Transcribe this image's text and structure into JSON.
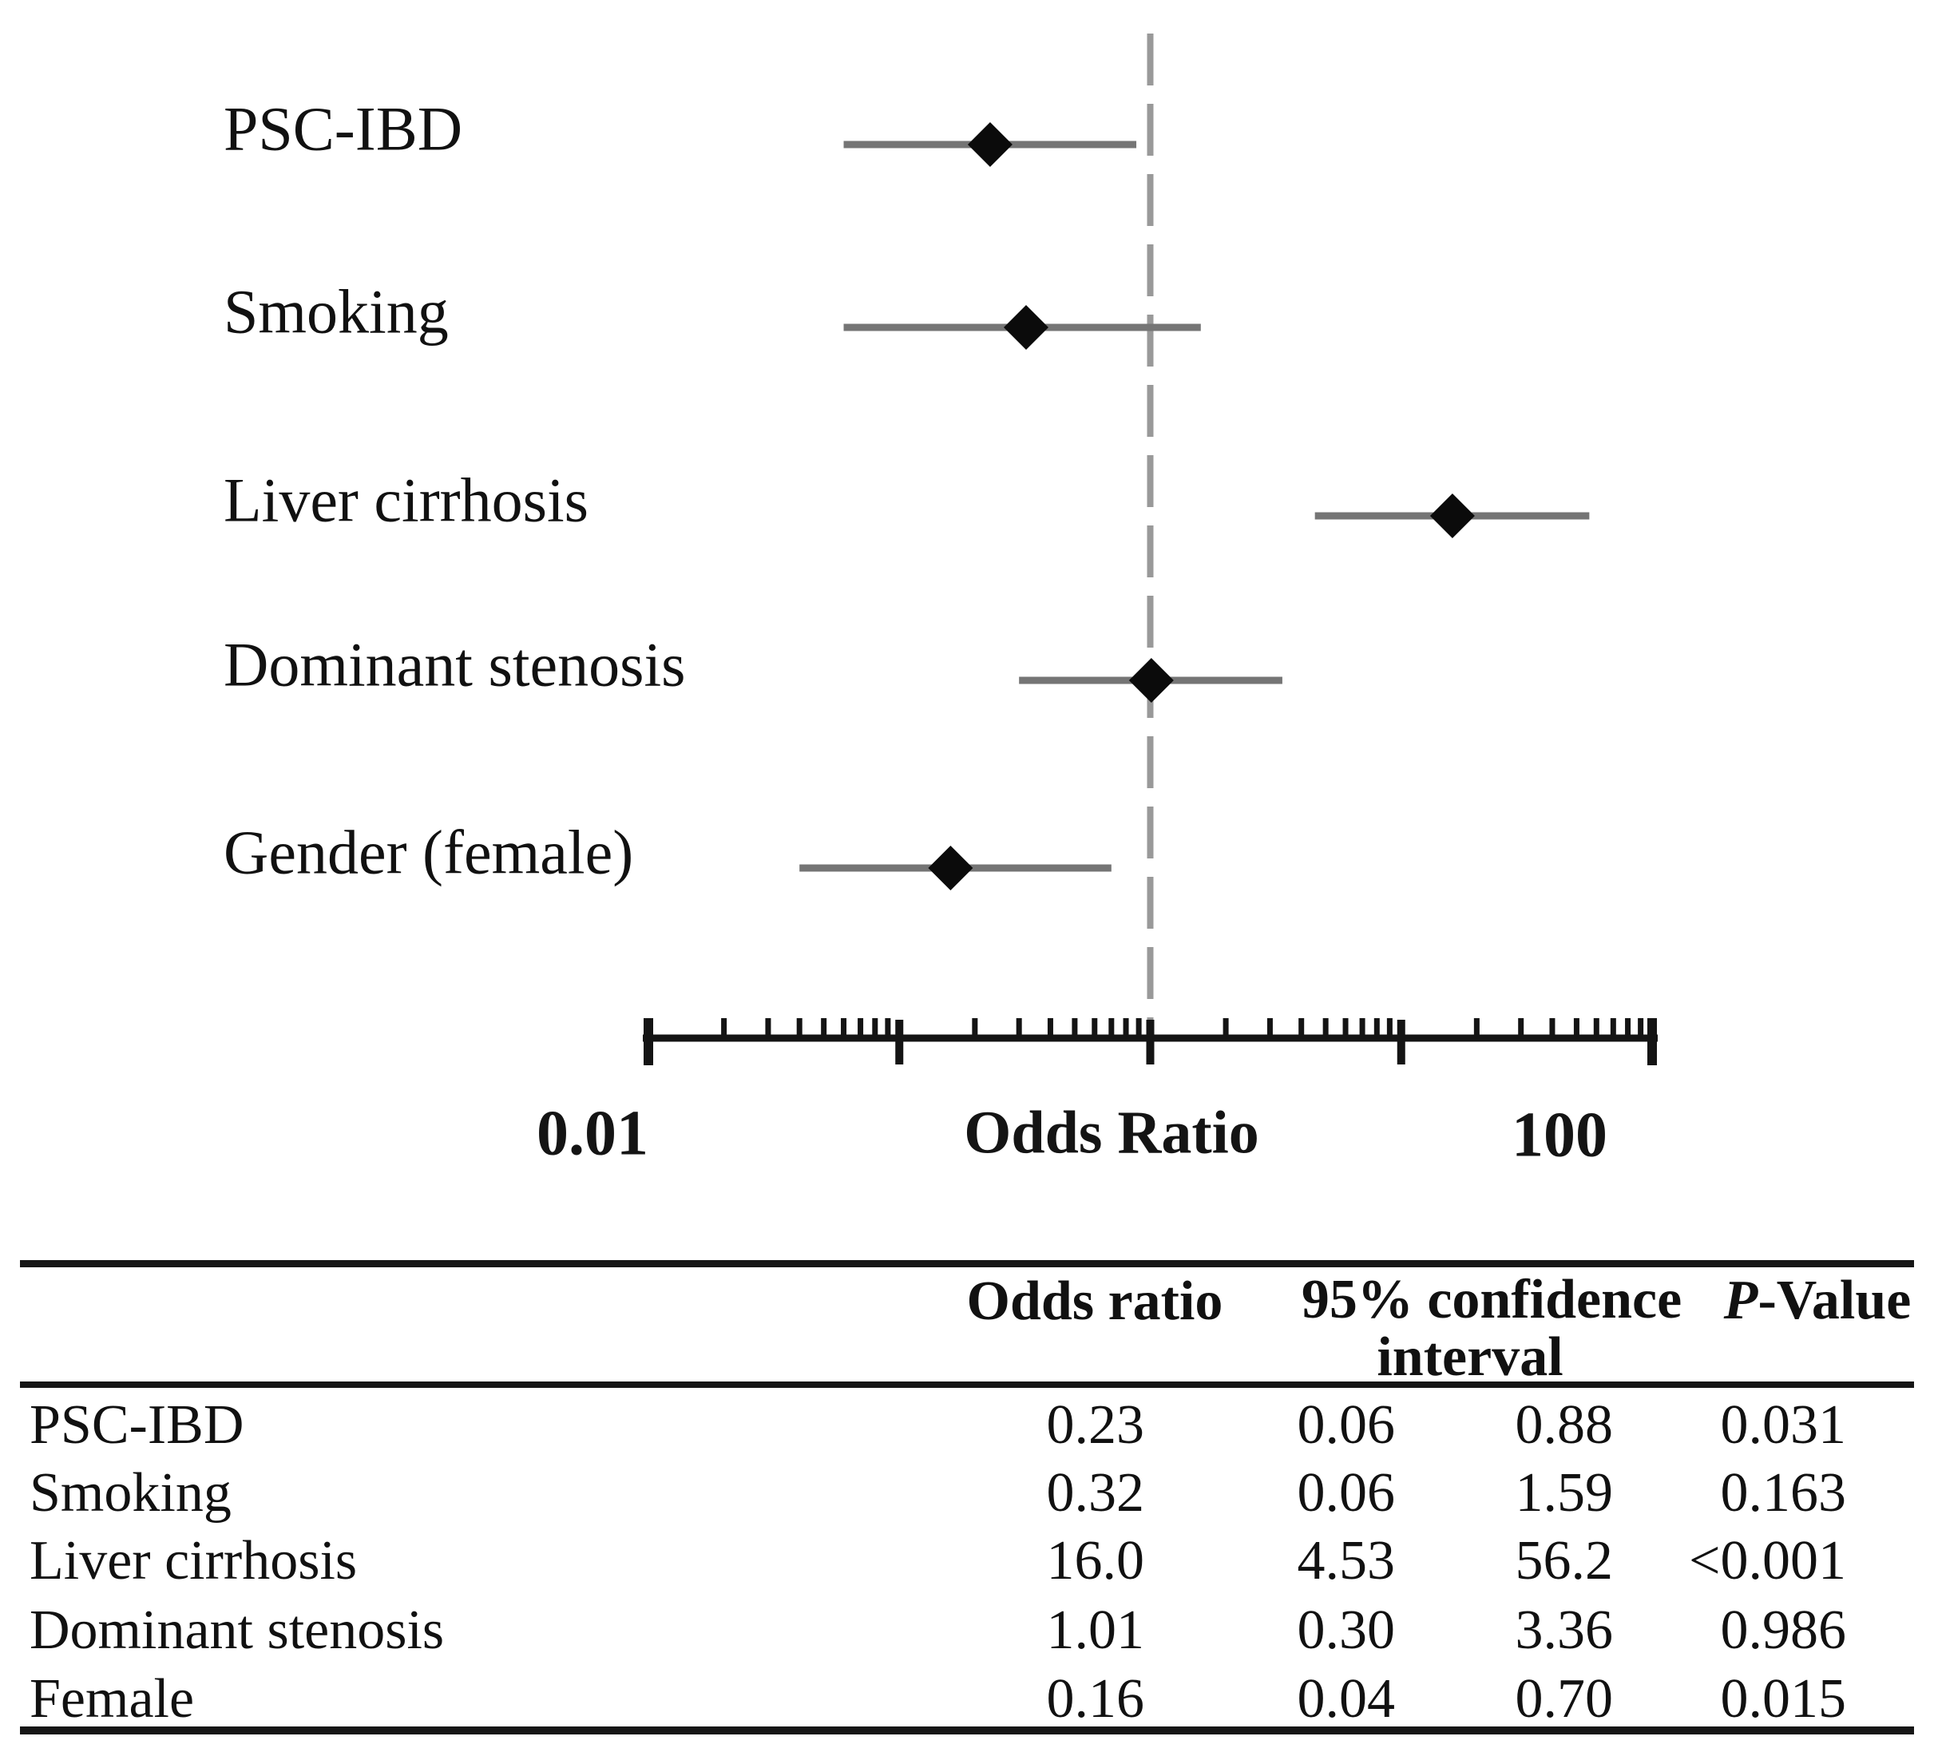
{
  "figure": {
    "background": "#ffffff"
  },
  "colors": {
    "diamond": "#0b0b0b",
    "ci_line": "#757575",
    "reference_line": "#999999",
    "axis": "#141414",
    "text": "#111111",
    "table_rule": "#161616"
  },
  "chart_data": {
    "type": "forest",
    "title": "",
    "xlabel": "Odds Ratio",
    "x_axis": {
      "scale": "log10",
      "min": 0.01,
      "max": 100,
      "major_ticks": [
        0.01,
        0.1,
        1,
        10,
        100
      ],
      "minor_tick_multipliers": [
        2,
        3,
        4,
        5,
        6,
        7,
        8,
        9
      ],
      "min_label": "0.01",
      "max_label": "100",
      "axis_label": "Odds Ratio",
      "grid": false
    },
    "reference_line_at": 1,
    "rows": [
      {
        "label": "PSC-IBD",
        "or": 0.23,
        "ci_low": 0.06,
        "ci_high": 0.88
      },
      {
        "label": "Smoking",
        "or": 0.32,
        "ci_low": 0.06,
        "ci_high": 1.59
      },
      {
        "label": "Liver cirrhosis",
        "or": 16.0,
        "ci_low": 4.53,
        "ci_high": 56.2
      },
      {
        "label": "Dominant stenosis",
        "or": 1.01,
        "ci_low": 0.3,
        "ci_high": 3.36
      },
      {
        "label": "Gender (female)",
        "or": 0.16,
        "ci_low": 0.04,
        "ci_high": 0.7
      }
    ]
  },
  "table": {
    "headers": {
      "col_or": "Odds ratio",
      "col_ci_line1": "95% confidence",
      "col_ci_line2": "interval",
      "col_p_italic": "P",
      "col_p_rest": "-Value"
    },
    "rows": [
      {
        "label": "PSC-IBD",
        "or": "0.23",
        "ci_low": "0.06",
        "ci_high": "0.88",
        "p": "0.031"
      },
      {
        "label": "Smoking",
        "or": "0.32",
        "ci_low": "0.06",
        "ci_high": "1.59",
        "p": "0.163"
      },
      {
        "label": "Liver cirrhosis",
        "or": "16.0",
        "ci_low": "4.53",
        "ci_high": "56.2",
        "p": "<0.001"
      },
      {
        "label": "Dominant stenosis",
        "or": "1.01",
        "ci_low": "0.30",
        "ci_high": "3.36",
        "p": "0.986"
      },
      {
        "label": "Female",
        "or": "0.16",
        "ci_low": "0.04",
        "ci_high": "0.70",
        "p": "0.015"
      }
    ]
  }
}
